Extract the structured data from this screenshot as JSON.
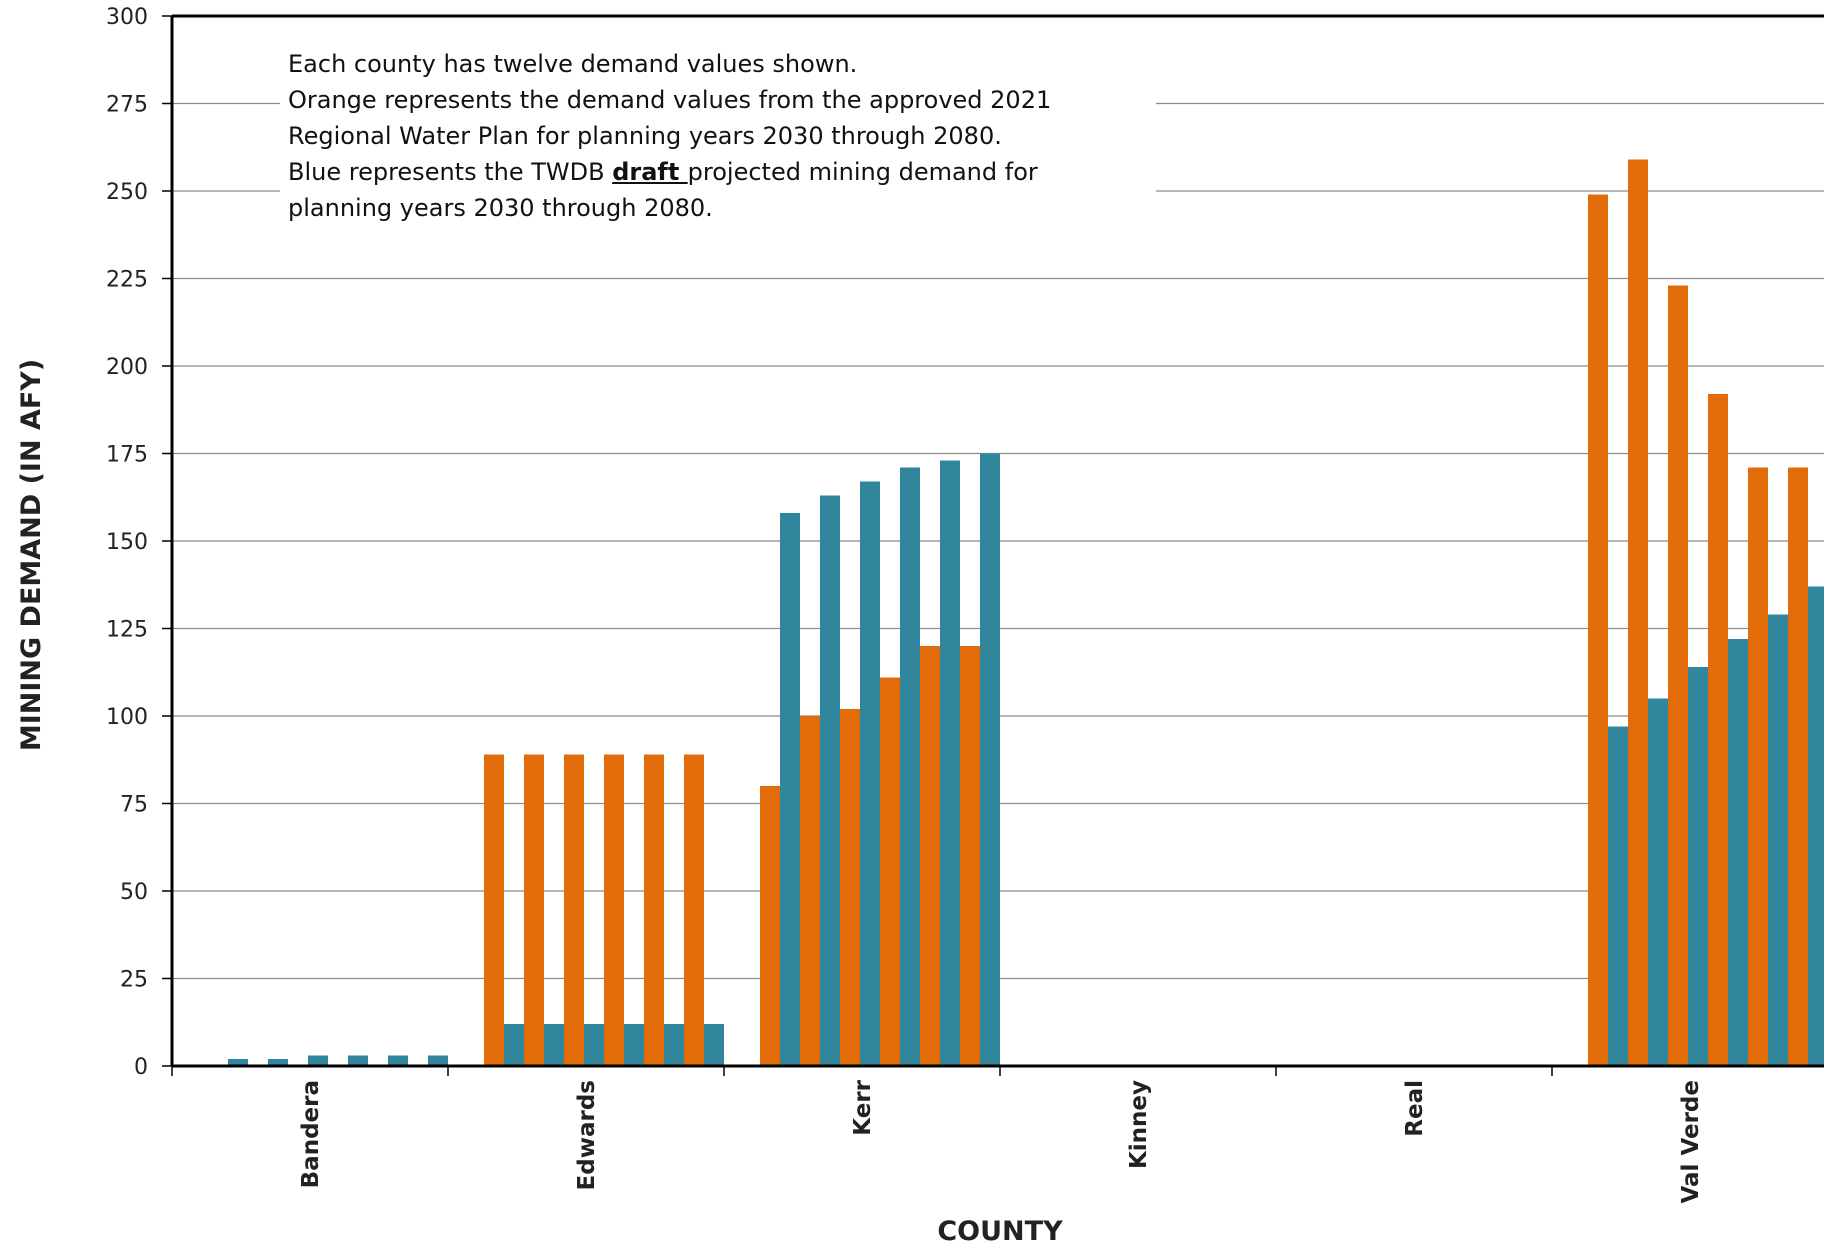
{
  "chart_data": {
    "type": "bar",
    "title": "",
    "xlabel": "COUNTY",
    "ylabel": "MINING  DEMAND (IN AFY)",
    "ylim": [
      0,
      300
    ],
    "yticks": [
      0,
      25,
      50,
      75,
      100,
      125,
      150,
      175,
      200,
      225,
      250,
      275,
      300
    ],
    "grid": true,
    "categories": [
      "Bandera",
      "Edwards",
      "Kerr",
      "Kinney",
      "Real",
      "Val Verde"
    ],
    "series": [
      {
        "color": "#E36C0A",
        "values": [
          [
            0,
            0,
            0,
            0,
            0,
            0
          ],
          [
            89,
            89,
            89,
            89,
            89,
            89
          ],
          [
            80,
            100,
            102,
            111,
            120,
            120
          ],
          [
            0,
            0,
            0,
            0,
            0,
            0
          ],
          [
            0,
            0,
            0,
            0,
            0,
            0
          ],
          [
            249,
            259,
            223,
            192,
            171,
            171
          ]
        ]
      },
      {
        "color": "#31859C",
        "values": [
          [
            2,
            2,
            3,
            3,
            3,
            3
          ],
          [
            12,
            12,
            12,
            12,
            12,
            12
          ],
          [
            158,
            163,
            167,
            171,
            173,
            175
          ],
          [
            0,
            0,
            0,
            0,
            0,
            0
          ],
          [
            0,
            0,
            0,
            0,
            0,
            0
          ],
          [
            97,
            105,
            114,
            122,
            129,
            137
          ]
        ]
      }
    ],
    "annotation": {
      "line1": "Each county has twelve  demand values  shown.",
      "line2": "Orange represents the demand values from the approved 2021",
      "line3": "Regional Water Plan for planning years 2030 through 2080.",
      "line4_pre": "Blue represents the TWDB ",
      "line4_emph": "draft ",
      "line4_post": "projected mining demand for",
      "line5": "planning years 2030 through 2080."
    }
  }
}
